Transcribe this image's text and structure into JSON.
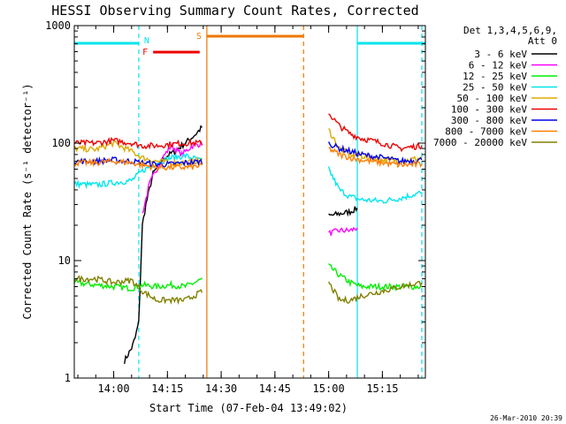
{
  "chart_data": {
    "type": "line",
    "title": "HESSI Observing Summary Count Rates, Corrected",
    "xlabel": "Start Time (07-Feb-04 13:49:02)",
    "ylabel": "Corrected Count Rate (s⁻¹ detector⁻¹)",
    "yscale": "log",
    "ylim": [
      1,
      1000
    ],
    "xlim": [
      "13:49",
      "15:27"
    ],
    "x_tick_labels": [
      "14:00",
      "14:15",
      "14:30",
      "14:45",
      "15:00",
      "15:15"
    ],
    "y_tick_labels": [
      "1",
      "10",
      "100",
      "1000"
    ],
    "timestamp": "26-Mar-2010 20:39",
    "legend": {
      "header": [
        "Det 1,3,4,5,6,9,",
        "Att 0"
      ],
      "placement": "right"
    },
    "flags": [
      {
        "label": "N",
        "color": "#00e5ee",
        "segments": [
          [
            "13:49",
            "14:07"
          ],
          [
            "15:08",
            "15:27"
          ]
        ]
      },
      {
        "label": "F",
        "color": "#ee0000",
        "segments": [
          [
            "14:11",
            "14:24"
          ]
        ]
      },
      {
        "label": "S",
        "color": "#ee7700",
        "segments": [
          [
            "14:26",
            "14:53"
          ]
        ]
      }
    ],
    "markers": [
      {
        "time": "14:07",
        "color": "#00e5ee",
        "style": "dashed"
      },
      {
        "time": "14:26",
        "color": "#ee7700",
        "style": "solid"
      },
      {
        "time": "14:53",
        "color": "#ee7700",
        "style": "dashed"
      },
      {
        "time": "15:08",
        "color": "#00e5ee",
        "style": "solid"
      },
      {
        "time": "15:26",
        "color": "#00e5ee",
        "style": "dashed"
      }
    ],
    "series": [
      {
        "name": "3 - 6 keV",
        "color": "#000000",
        "x": [
          "14:03",
          "14:05",
          "14:06",
          "14:07",
          "14:08",
          "14:09",
          "14:11",
          "14:14",
          "14:17",
          "14:20",
          "14:23",
          "14:25",
          "15:00",
          "15:03",
          "15:06",
          "15:08"
        ],
        "values": [
          1.4,
          1.8,
          2.2,
          3,
          20,
          30,
          55,
          75,
          85,
          100,
          120,
          140,
          24,
          25,
          26,
          28
        ]
      },
      {
        "name": "6 - 12 keV",
        "color": "#ff00ff",
        "x": [
          "14:08",
          "14:10",
          "14:13",
          "14:16",
          "14:19",
          "14:22",
          "14:25",
          "15:00",
          "15:03",
          "15:06",
          "15:08"
        ],
        "values": [
          25,
          45,
          70,
          95,
          80,
          95,
          100,
          17,
          18,
          18,
          19
        ]
      },
      {
        "name": "12 - 25 keV",
        "color": "#00ee00",
        "x": [
          "13:49",
          "13:55",
          "14:00",
          "14:05",
          "14:08",
          "14:12",
          "14:16",
          "14:20",
          "14:25",
          "15:00",
          "15:03",
          "15:06",
          "15:09",
          "15:15",
          "15:20",
          "15:26"
        ],
        "values": [
          6.5,
          6.2,
          6.0,
          5.8,
          6.2,
          6.0,
          6.2,
          6.0,
          7.0,
          9.0,
          7.5,
          6.5,
          6.0,
          6.0,
          6.0,
          6.0
        ]
      },
      {
        "name": "25 - 50 keV",
        "color": "#00e5ee",
        "x": [
          "13:49",
          "13:55",
          "14:00",
          "14:05",
          "14:08",
          "14:12",
          "14:16",
          "14:20",
          "14:25",
          "15:00",
          "15:03",
          "15:06",
          "15:09",
          "15:15",
          "15:20",
          "15:26"
        ],
        "values": [
          45,
          44,
          46,
          48,
          58,
          68,
          75,
          78,
          70,
          60,
          40,
          35,
          33,
          32,
          34,
          38
        ]
      },
      {
        "name": "50 - 100 keV",
        "color": "#ddaa00",
        "x": [
          "13:49",
          "13:55",
          "14:00",
          "14:05",
          "14:08",
          "14:12",
          "14:16",
          "14:20",
          "14:25",
          "15:00",
          "15:03",
          "15:06",
          "15:09",
          "15:15",
          "15:20",
          "15:26"
        ],
        "values": [
          90,
          88,
          100,
          85,
          75,
          70,
          68,
          68,
          72,
          130,
          90,
          80,
          78,
          72,
          70,
          75
        ]
      },
      {
        "name": "100 - 300 keV",
        "color": "#ee0000",
        "x": [
          "13:49",
          "13:55",
          "14:00",
          "14:05",
          "14:08",
          "14:12",
          "14:16",
          "14:20",
          "14:25",
          "15:00",
          "15:03",
          "15:06",
          "15:09",
          "15:15",
          "15:20",
          "15:26"
        ],
        "values": [
          100,
          100,
          105,
          100,
          95,
          95,
          98,
          100,
          100,
          180,
          140,
          120,
          110,
          100,
          90,
          95
        ]
      },
      {
        "name": "300 - 800 keV",
        "color": "#0000ee",
        "x": [
          "13:49",
          "13:55",
          "14:00",
          "14:05",
          "14:08",
          "14:12",
          "14:16",
          "14:20",
          "14:25",
          "15:00",
          "15:03",
          "15:06",
          "15:09",
          "15:15",
          "15:20",
          "15:26"
        ],
        "values": [
          70,
          70,
          72,
          70,
          68,
          66,
          66,
          68,
          70,
          100,
          90,
          85,
          80,
          75,
          70,
          72
        ]
      },
      {
        "name": "800 - 7000 keV",
        "color": "#ff7f00",
        "x": [
          "13:49",
          "13:55",
          "14:00",
          "14:05",
          "14:08",
          "14:12",
          "14:16",
          "14:20",
          "14:25",
          "15:00",
          "15:03",
          "15:06",
          "15:09",
          "15:15",
          "15:20",
          "15:26"
        ],
        "values": [
          68,
          68,
          70,
          68,
          65,
          62,
          62,
          62,
          64,
          90,
          80,
          75,
          72,
          68,
          65,
          66
        ]
      },
      {
        "name": "7000 - 20000 keV",
        "color": "#808000",
        "x": [
          "13:49",
          "13:55",
          "14:00",
          "14:05",
          "14:08",
          "14:12",
          "14:16",
          "14:20",
          "14:25",
          "15:00",
          "15:03",
          "15:06",
          "15:09",
          "15:15",
          "15:20",
          "15:26"
        ],
        "values": [
          7.0,
          7.0,
          6.5,
          6.8,
          5.5,
          4.6,
          4.6,
          4.6,
          5.5,
          6.5,
          4.6,
          4.6,
          5.0,
          5.5,
          6.0,
          6.5
        ]
      }
    ]
  }
}
